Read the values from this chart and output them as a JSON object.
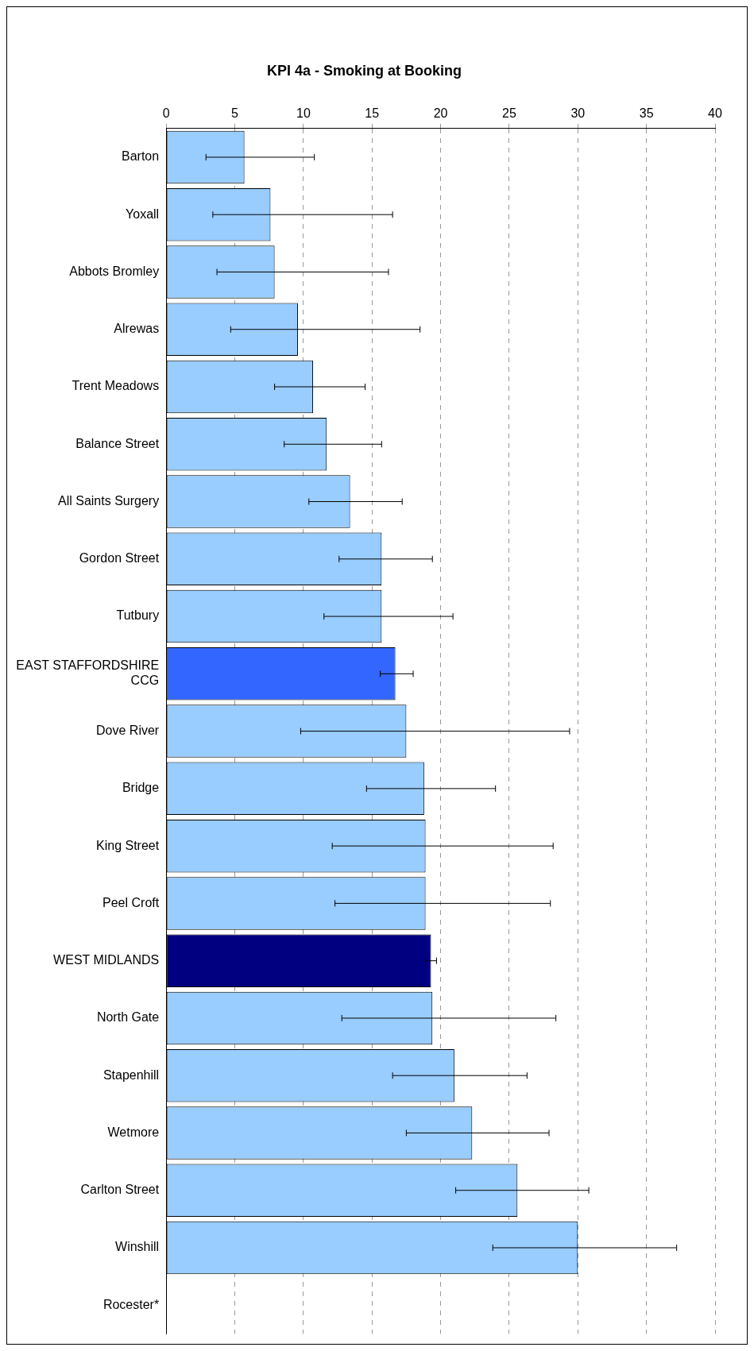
{
  "chart_data": {
    "type": "bar",
    "orientation": "horizontal",
    "title": "KPI 4a - Smoking at Booking",
    "categories": [
      "Barton",
      "Yoxall",
      "Abbots Bromley",
      "Alrewas",
      "Trent Meadows",
      "Balance Street",
      "All Saints Surgery",
      "Gordon Street",
      "Tutbury",
      "EAST STAFFORDSHIRE CCG",
      "Dove River",
      "Bridge",
      "King Street",
      "Peel Croft",
      "WEST MIDLANDS",
      "North Gate",
      "Stapenhill",
      "Wetmore",
      "Carlton Street",
      "Winshill",
      "Rocester*"
    ],
    "values": [
      5.7,
      7.6,
      7.9,
      9.6,
      10.7,
      11.7,
      13.4,
      15.7,
      15.7,
      16.7,
      17.5,
      18.8,
      18.9,
      18.9,
      19.3,
      19.4,
      21.0,
      22.3,
      25.6,
      30.0,
      null
    ],
    "colors": [
      "#99ccff",
      "#99ccff",
      "#99ccff",
      "#99ccff",
      "#99ccff",
      "#99ccff",
      "#99ccff",
      "#99ccff",
      "#99ccff",
      "#3366ff",
      "#99ccff",
      "#99ccff",
      "#99ccff",
      "#99ccff",
      "#000080",
      "#99ccff",
      "#99ccff",
      "#99ccff",
      "#99ccff",
      "#99ccff",
      "#99ccff"
    ],
    "errors": [
      [
        2.9,
        10.8
      ],
      [
        3.4,
        16.5
      ],
      [
        3.7,
        16.2
      ],
      [
        4.7,
        18.5
      ],
      [
        7.9,
        14.5
      ],
      [
        8.6,
        15.7
      ],
      [
        10.4,
        17.2
      ],
      [
        12.6,
        19.4
      ],
      [
        11.5,
        20.9
      ],
      [
        15.6,
        18.0
      ],
      [
        9.8,
        29.4
      ],
      [
        14.6,
        24.0
      ],
      [
        12.1,
        28.2
      ],
      [
        12.3,
        28.0
      ],
      [
        18.9,
        19.7
      ],
      [
        12.8,
        28.4
      ],
      [
        16.5,
        26.3
      ],
      [
        17.5,
        27.9
      ],
      [
        21.1,
        30.8
      ],
      [
        23.8,
        37.2
      ],
      null
    ],
    "xlim": [
      0,
      40
    ],
    "xticks": [
      0,
      5,
      10,
      15,
      20,
      25,
      30,
      35,
      40
    ],
    "grid": "x",
    "legend": false
  }
}
